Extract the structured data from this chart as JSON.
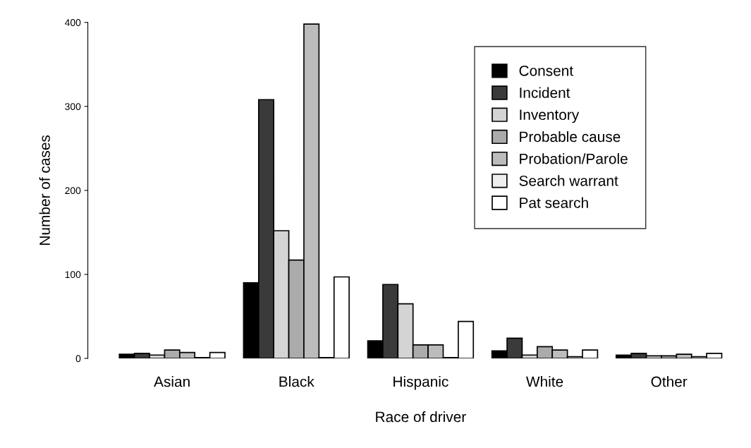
{
  "chart_data": {
    "type": "bar",
    "xlabel": "Race of driver",
    "ylabel": "Number of cases",
    "categories": [
      "Asian",
      "Black",
      "Hispanic",
      "White",
      "Other"
    ],
    "series": [
      {
        "name": "Consent",
        "color": "#000000",
        "values": [
          5,
          90,
          21,
          9,
          4
        ]
      },
      {
        "name": "Incident",
        "color": "#3a3a3a",
        "values": [
          6,
          308,
          88,
          24,
          6
        ]
      },
      {
        "name": "Inventory",
        "color": "#d4d4d4",
        "values": [
          4,
          152,
          65,
          4,
          3
        ]
      },
      {
        "name": "Probable cause",
        "color": "#ababab",
        "values": [
          10,
          117,
          16,
          14,
          3
        ]
      },
      {
        "name": "Probation/Parole",
        "color": "#bcbcbc",
        "values": [
          7,
          398,
          16,
          10,
          5
        ]
      },
      {
        "name": "Search warrant",
        "color": "#eeeeee",
        "values": [
          1,
          1,
          1,
          2,
          2
        ]
      },
      {
        "name": "Pat search",
        "color": "#ffffff",
        "values": [
          7,
          97,
          44,
          10,
          6
        ]
      }
    ],
    "ylim": [
      0,
      400
    ],
    "yticks": [
      0,
      100,
      200,
      300,
      400
    ],
    "grid": false,
    "legend": "top right"
  }
}
